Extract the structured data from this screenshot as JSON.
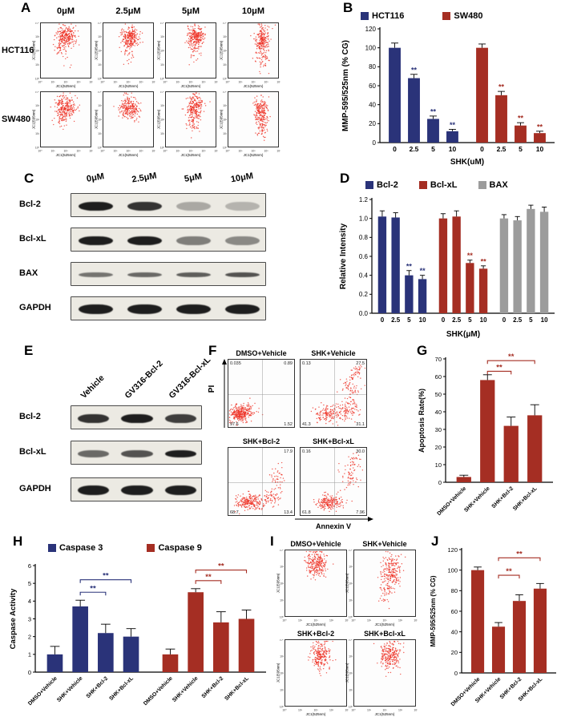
{
  "colors": {
    "navy": "#2a3379",
    "red": "#a52e23",
    "gray": "#9c9c9c",
    "dots": "#ee3124"
  },
  "flow_axes": {
    "x": "JC1(525nm)",
    "y": "JC1(595nm)",
    "ticks": [
      "10⁰",
      "10¹",
      "10²",
      "10³",
      "10⁴"
    ]
  },
  "panelA": {
    "label": "A",
    "cols": [
      "0μM",
      "2.5μM",
      "5μM",
      "10μM"
    ],
    "rows": [
      "HCT116",
      "SW480"
    ]
  },
  "panelB": {
    "label": "B",
    "legend": [
      {
        "name": "HCT116",
        "color": "navy"
      },
      {
        "name": "SW480",
        "color": "red"
      }
    ],
    "chart": {
      "type": "bar",
      "ylabel": "MMP-595/525nm (% CG)",
      "xlabel": "SHK(uM)",
      "ylim": [
        0,
        120
      ],
      "yticks": [
        "0",
        "20",
        "40",
        "60",
        "80",
        "100",
        "120"
      ],
      "cats": [
        "0",
        "2.5",
        "5",
        "10"
      ],
      "groups": [
        {
          "name": "HCT116",
          "color": "navy",
          "values": [
            100,
            68,
            25,
            12
          ],
          "errors": [
            5,
            4,
            3,
            2
          ],
          "sig": [
            "",
            "**",
            "**",
            "**"
          ]
        },
        {
          "name": "SW480",
          "color": "red",
          "values": [
            100,
            50,
            18,
            10
          ],
          "errors": [
            4,
            4,
            3,
            2
          ],
          "sig": [
            "",
            "**",
            "**",
            "**"
          ]
        }
      ]
    }
  },
  "panelC": {
    "label": "C",
    "cols": [
      "0μM",
      "2.5μM",
      "5μM",
      "10μM"
    ],
    "rows": [
      {
        "name": "Bcl-2",
        "bands": [
          0.95,
          0.85,
          0.3,
          0.25
        ],
        "thick": 11
      },
      {
        "name": "Bcl-xL",
        "bands": [
          0.95,
          0.95,
          0.5,
          0.45
        ],
        "thick": 11
      },
      {
        "name": "BAX",
        "bands": [
          0.55,
          0.6,
          0.65,
          0.7
        ],
        "thick": 6
      },
      {
        "name": "GAPDH",
        "bands": [
          0.95,
          0.95,
          0.95,
          0.95
        ],
        "thick": 12
      }
    ]
  },
  "panelD": {
    "label": "D",
    "legend": [
      {
        "name": "Bcl-2",
        "color": "navy"
      },
      {
        "name": "Bcl-xL",
        "color": "red"
      },
      {
        "name": "BAX",
        "color": "gray"
      }
    ],
    "chart": {
      "type": "bar",
      "ylabel": "Relative Intensity",
      "xlabel": "SHK(μM)",
      "ylim": [
        0,
        1.2
      ],
      "yticks": [
        "0.0",
        "0.2",
        "0.4",
        "0.6",
        "0.8",
        "1.0",
        "1.2"
      ],
      "cats": [
        "0",
        "2.5",
        "5",
        "10"
      ],
      "groups": [
        {
          "name": "Bcl-2",
          "color": "navy",
          "values": [
            1.02,
            1.01,
            0.4,
            0.36
          ],
          "errors": [
            0.06,
            0.05,
            0.05,
            0.04
          ],
          "sig": [
            "",
            "",
            "**",
            "**"
          ]
        },
        {
          "name": "Bcl-xL",
          "color": "red",
          "values": [
            1.0,
            1.02,
            0.53,
            0.47
          ],
          "errors": [
            0.05,
            0.06,
            0.03,
            0.03
          ],
          "sig": [
            "",
            "",
            "**",
            "**"
          ]
        },
        {
          "name": "BAX",
          "color": "gray",
          "values": [
            1.0,
            0.98,
            1.1,
            1.07
          ],
          "errors": [
            0.04,
            0.04,
            0.04,
            0.05
          ],
          "sig": [
            "",
            "",
            "",
            ""
          ]
        }
      ]
    }
  },
  "panelE": {
    "label": "E",
    "cols": [
      "Vehicle",
      "GV316-Bcl-2",
      "GV316-Bcl-xL"
    ],
    "rows": [
      {
        "name": "Bcl-2",
        "bands": [
          0.85,
          0.95,
          0.8
        ],
        "thick": 11
      },
      {
        "name": "Bcl-xL",
        "bands": [
          0.6,
          0.7,
          0.95
        ],
        "thick": 9
      },
      {
        "name": "GAPDH",
        "bands": [
          0.95,
          0.95,
          0.95
        ],
        "thick": 12
      }
    ]
  },
  "panelF": {
    "label": "F",
    "yaxis": "PI",
    "xaxis": "Annexin V",
    "plots": [
      {
        "title": "DMSO+Vehicle",
        "corners": [
          "0.035",
          "0.89",
          "97.6",
          "1.52"
        ]
      },
      {
        "title": "SHK+Vehicle",
        "corners": [
          "0.13",
          "27.5",
          "41.3",
          "31.1"
        ]
      },
      {
        "title": "SHK+Bcl-2",
        "corners": [
          "",
          "17.9",
          "68.7",
          "13.4"
        ]
      },
      {
        "title": "SHK+Bcl-xL",
        "corners": [
          "0.16",
          "30.0",
          "61.8",
          "7.96"
        ]
      }
    ]
  },
  "panelG": {
    "label": "G",
    "chart": {
      "type": "bar",
      "ylabel": "Apoptosis Rate(%)",
      "ylim": [
        0,
        70
      ],
      "yticks": [
        "0",
        "10",
        "20",
        "30",
        "40",
        "50",
        "60",
        "70"
      ],
      "cats": [
        "DMSO+Vehicle",
        "SHK+Vehicle",
        "SHK+Bcl-2",
        "SHK+Bcl-xL"
      ],
      "rotate": true,
      "groups": [
        {
          "color": "red",
          "values": [
            3,
            58,
            32,
            38
          ],
          "errors": [
            1,
            3,
            5,
            6
          ],
          "sig": [
            "",
            "",
            "",
            ""
          ]
        }
      ],
      "brackets": [
        {
          "a": 1,
          "b": 2,
          "y": 63,
          "label": "**",
          "color": "red"
        },
        {
          "a": 1,
          "b": 3,
          "y": 69,
          "label": "**",
          "color": "red"
        }
      ]
    }
  },
  "panelH": {
    "label": "H",
    "legend": [
      {
        "name": "Caspase 3",
        "color": "navy"
      },
      {
        "name": "Caspase 9",
        "color": "red"
      }
    ],
    "chart": {
      "type": "bar",
      "ylabel": "Caspase Activity",
      "ylim": [
        0,
        6
      ],
      "yticks": [
        "0",
        "1",
        "2",
        "3",
        "4",
        "5",
        "6"
      ],
      "cats": [
        "DMSO+Vehicle",
        "SHK+Vehicle",
        "SHK+Bcl-2",
        "SHK+Bcl-xL"
      ],
      "rotate": true,
      "groups": [
        {
          "name": "Caspase 3",
          "color": "navy",
          "values": [
            1.0,
            3.7,
            2.2,
            2.0
          ],
          "errors": [
            0.45,
            0.35,
            0.5,
            0.45
          ],
          "sig": [
            "",
            "",
            "",
            ""
          ]
        },
        {
          "name": "Caspase 9",
          "color": "red",
          "values": [
            1.0,
            4.5,
            2.8,
            3.0
          ],
          "errors": [
            0.3,
            0.2,
            0.6,
            0.5
          ],
          "sig": [
            "",
            "",
            "",
            ""
          ]
        }
      ],
      "brackets": [
        {
          "a": 1,
          "b": 2,
          "y": 4.5,
          "label": "**",
          "color": "navy"
        },
        {
          "a": 1,
          "b": 3,
          "y": 5.2,
          "label": "**",
          "color": "navy"
        },
        {
          "a": 5,
          "b": 6,
          "y": 5.15,
          "label": "**",
          "color": "red"
        },
        {
          "a": 5,
          "b": 7,
          "y": 5.75,
          "label": "**",
          "color": "red"
        }
      ]
    }
  },
  "panelI": {
    "label": "I",
    "plots": [
      {
        "title": "DMSO+Vehicle"
      },
      {
        "title": "SHK+Vehicle"
      },
      {
        "title": "SHK+Bcl-2"
      },
      {
        "title": "SHK+Bcl-xL"
      }
    ]
  },
  "panelJ": {
    "label": "J",
    "chart": {
      "type": "bar",
      "ylabel": "MMP-595/525nm (% CG)",
      "ylim": [
        0,
        120
      ],
      "yticks": [
        "0",
        "20",
        "40",
        "60",
        "80",
        "100",
        "120"
      ],
      "cats": [
        "DMSO+Vehicle",
        "SHK+Vehicle",
        "SHK+Bcl-2",
        "SHK+Bcl-xL"
      ],
      "rotate": true,
      "groups": [
        {
          "color": "red",
          "values": [
            100,
            45,
            70,
            82
          ],
          "errors": [
            3,
            4,
            6,
            5
          ],
          "sig": [
            "",
            "",
            "",
            ""
          ]
        }
      ],
      "brackets": [
        {
          "a": 1,
          "b": 2,
          "y": 95,
          "label": "**",
          "color": "red"
        },
        {
          "a": 1,
          "b": 3,
          "y": 112,
          "label": "**",
          "color": "red"
        }
      ]
    }
  }
}
